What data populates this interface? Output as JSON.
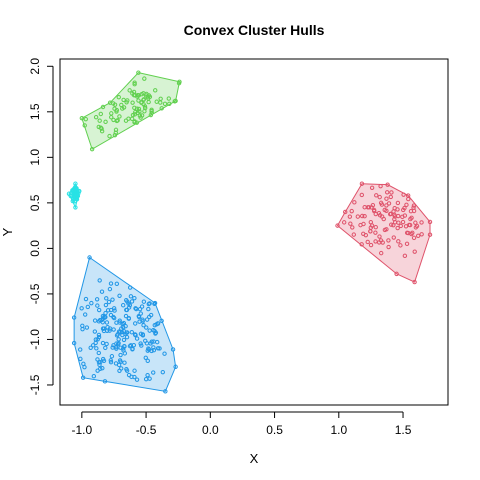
{
  "chart_data": {
    "type": "scatter",
    "title": "Convex Cluster Hulls",
    "xlabel": "X",
    "ylabel": "Y",
    "xlim": [
      -1.17,
      1.85
    ],
    "ylim": [
      -1.72,
      2.08
    ],
    "xticks": [
      -1.0,
      -0.5,
      0.0,
      0.5,
      1.0,
      1.5
    ],
    "xtick_labels": [
      "-1.0",
      "-0.5",
      "0.0",
      "0.5",
      "1.0",
      "1.5"
    ],
    "yticks": [
      -1.5,
      -1.0,
      -0.5,
      0.0,
      0.5,
      1.0,
      1.5,
      2.0
    ],
    "ytick_labels": [
      "-1.5",
      "-1.0",
      "-0.5",
      "0.0",
      "0.5",
      "1.0",
      "1.5",
      "2.0"
    ],
    "grid": false,
    "series": [
      {
        "cluster": 1,
        "color": "#DF536B",
        "fill": "rgba(223,83,107,0.25)",
        "hull": [
          [
            1.18,
            0.71
          ],
          [
            1.38,
            0.7
          ],
          [
            1.54,
            0.58
          ],
          [
            1.71,
            0.29
          ],
          [
            1.71,
            0.15
          ],
          [
            1.59,
            -0.37
          ],
          [
            1.45,
            -0.28
          ],
          [
            0.99,
            0.25
          ],
          [
            1.05,
            0.4
          ]
        ],
        "n_points": 120,
        "center": [
          1.39,
          0.3
        ],
        "spread": [
          0.25,
          0.27
        ]
      },
      {
        "cluster": 2,
        "color": "#61D04F",
        "fill": "rgba(97,208,79,0.25)",
        "hull": [
          [
            -0.56,
            1.93
          ],
          [
            -0.24,
            1.83
          ],
          [
            -0.27,
            1.62
          ],
          [
            -0.92,
            1.09
          ],
          [
            -1.0,
            1.43
          ],
          [
            -0.78,
            1.6
          ]
        ],
        "n_points": 100,
        "center": [
          -0.55,
          1.5
        ],
        "spread": [
          0.3,
          0.3
        ]
      },
      {
        "cluster": 3,
        "color": "#2297E6",
        "fill": "rgba(34,151,230,0.25)",
        "hull": [
          [
            -0.94,
            -0.1
          ],
          [
            -0.43,
            -0.6
          ],
          [
            -0.29,
            -1.11
          ],
          [
            -0.27,
            -1.3
          ],
          [
            -0.35,
            -1.57
          ],
          [
            -0.82,
            -1.46
          ],
          [
            -0.99,
            -1.42
          ],
          [
            -1.06,
            -1.04
          ],
          [
            -1.06,
            -0.76
          ]
        ],
        "n_points": 220,
        "center": [
          -0.68,
          -0.95
        ],
        "spread": [
          0.3,
          0.38
        ]
      },
      {
        "cluster": 4,
        "color": "#28E2E5",
        "fill": "rgba(40,226,229,0.25)",
        "hull": [
          [
            -1.05,
            0.71
          ],
          [
            -1.02,
            0.63
          ],
          [
            -1.05,
            0.45
          ],
          [
            -1.1,
            0.6
          ]
        ],
        "n_points": 50,
        "center": [
          -1.05,
          0.59
        ],
        "spread": [
          0.025,
          0.06
        ]
      }
    ]
  }
}
